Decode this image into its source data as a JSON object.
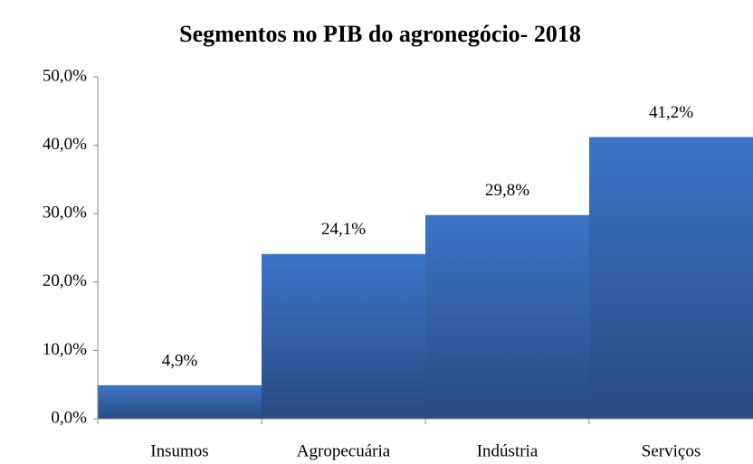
{
  "chart_data": {
    "type": "bar",
    "title": "Segmentos no PIB do agronegócio- 2018",
    "categories": [
      "Insumos",
      "Agropecuária",
      "Indústria",
      "Serviços"
    ],
    "values": [
      4.9,
      24.1,
      29.8,
      41.2
    ],
    "value_labels": [
      "4,9%",
      "24,1%",
      "29,8%",
      "41,2%"
    ],
    "color": "#3d74c8",
    "ylim": [
      0,
      50
    ],
    "yticks": [
      {
        "value": 0,
        "label": "0,0%"
      },
      {
        "value": 10,
        "label": "10,0%"
      },
      {
        "value": 20,
        "label": "20,0%"
      },
      {
        "value": 30,
        "label": "30,0%"
      },
      {
        "value": 40,
        "label": "40,0%"
      },
      {
        "value": 50,
        "label": "50,0%"
      }
    ],
    "grid": false
  }
}
